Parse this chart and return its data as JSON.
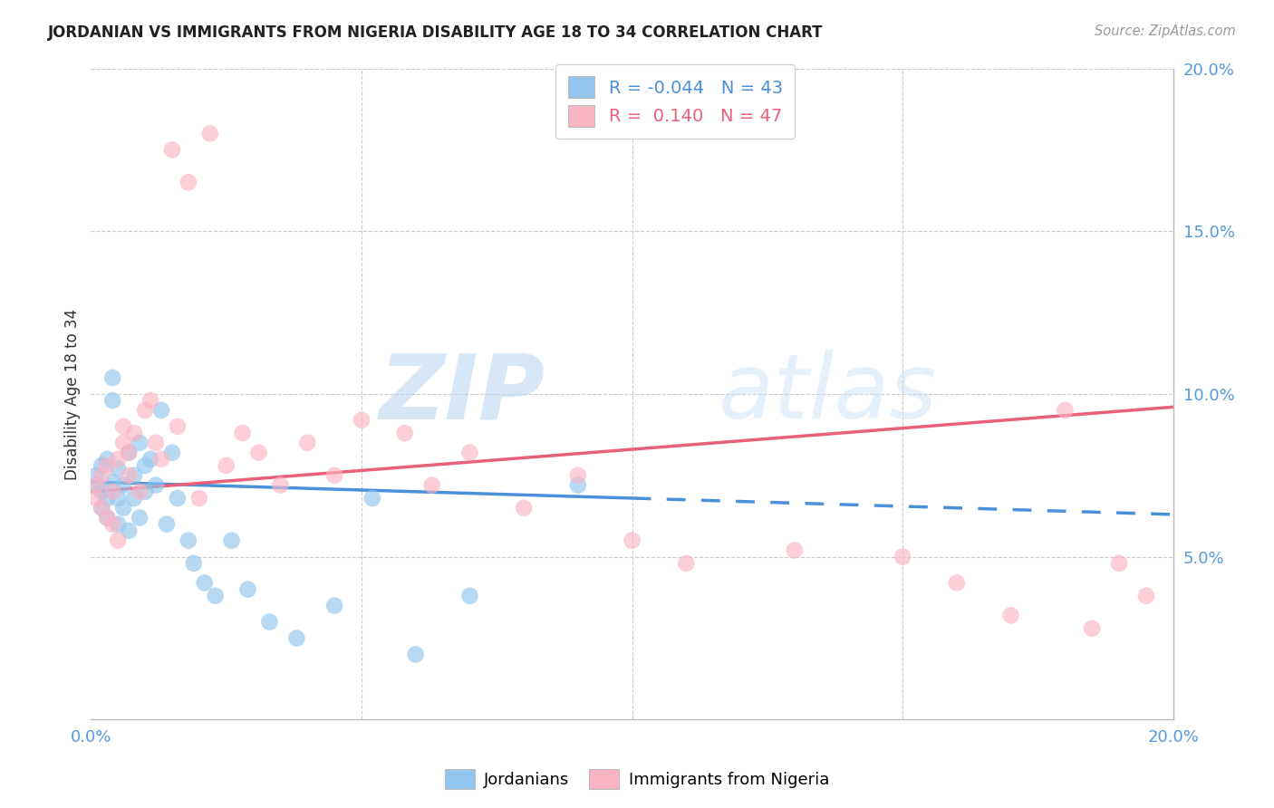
{
  "title": "JORDANIAN VS IMMIGRANTS FROM NIGERIA DISABILITY AGE 18 TO 34 CORRELATION CHART",
  "source": "Source: ZipAtlas.com",
  "ylabel": "Disability Age 18 to 34",
  "xlim": [
    0.0,
    0.2
  ],
  "ylim": [
    0.0,
    0.2
  ],
  "xticks": [
    0.0,
    0.05,
    0.1,
    0.15,
    0.2
  ],
  "xticklabels": [
    "0.0%",
    "",
    "",
    "",
    "20.0%"
  ],
  "yticks": [
    0.05,
    0.1,
    0.15,
    0.2
  ],
  "yticklabels": [
    "5.0%",
    "10.0%",
    "15.0%",
    "20.0%"
  ],
  "legend_labels": [
    "Jordanians",
    "Immigrants from Nigeria"
  ],
  "r_jordan": -0.044,
  "n_jordan": 43,
  "r_nigeria": 0.14,
  "n_nigeria": 47,
  "color_jordan": "#92C5ED",
  "color_nigeria": "#F9B4C4",
  "line_color_jordan": "#4A90D9",
  "line_color_nigeria": "#E8607A",
  "watermark_zip": "ZIP",
  "watermark_atlas": "atlas",
  "jordan_x": [
    0.001,
    0.001,
    0.002,
    0.002,
    0.002,
    0.003,
    0.003,
    0.003,
    0.004,
    0.004,
    0.004,
    0.005,
    0.005,
    0.005,
    0.006,
    0.006,
    0.007,
    0.007,
    0.008,
    0.008,
    0.009,
    0.009,
    0.01,
    0.01,
    0.011,
    0.012,
    0.013,
    0.014,
    0.015,
    0.016,
    0.018,
    0.019,
    0.021,
    0.023,
    0.026,
    0.029,
    0.033,
    0.038,
    0.045,
    0.052,
    0.06,
    0.07,
    0.09
  ],
  "jordan_y": [
    0.075,
    0.072,
    0.078,
    0.07,
    0.065,
    0.08,
    0.068,
    0.062,
    0.105,
    0.098,
    0.073,
    0.077,
    0.068,
    0.06,
    0.072,
    0.065,
    0.082,
    0.058,
    0.075,
    0.068,
    0.085,
    0.062,
    0.078,
    0.07,
    0.08,
    0.072,
    0.095,
    0.06,
    0.082,
    0.068,
    0.055,
    0.048,
    0.042,
    0.038,
    0.055,
    0.04,
    0.03,
    0.025,
    0.035,
    0.068,
    0.02,
    0.038,
    0.072
  ],
  "nigeria_x": [
    0.001,
    0.001,
    0.002,
    0.002,
    0.003,
    0.003,
    0.004,
    0.004,
    0.005,
    0.005,
    0.006,
    0.006,
    0.007,
    0.007,
    0.008,
    0.009,
    0.01,
    0.011,
    0.012,
    0.013,
    0.015,
    0.016,
    0.018,
    0.02,
    0.022,
    0.025,
    0.028,
    0.031,
    0.035,
    0.04,
    0.045,
    0.05,
    0.058,
    0.063,
    0.07,
    0.08,
    0.09,
    0.1,
    0.11,
    0.13,
    0.15,
    0.16,
    0.17,
    0.18,
    0.185,
    0.19,
    0.195
  ],
  "nigeria_y": [
    0.072,
    0.068,
    0.075,
    0.065,
    0.078,
    0.062,
    0.07,
    0.06,
    0.08,
    0.055,
    0.085,
    0.09,
    0.082,
    0.075,
    0.088,
    0.07,
    0.095,
    0.098,
    0.085,
    0.08,
    0.175,
    0.09,
    0.165,
    0.068,
    0.18,
    0.078,
    0.088,
    0.082,
    0.072,
    0.085,
    0.075,
    0.092,
    0.088,
    0.072,
    0.082,
    0.065,
    0.075,
    0.055,
    0.048,
    0.052,
    0.05,
    0.042,
    0.032,
    0.095,
    0.028,
    0.048,
    0.038
  ]
}
